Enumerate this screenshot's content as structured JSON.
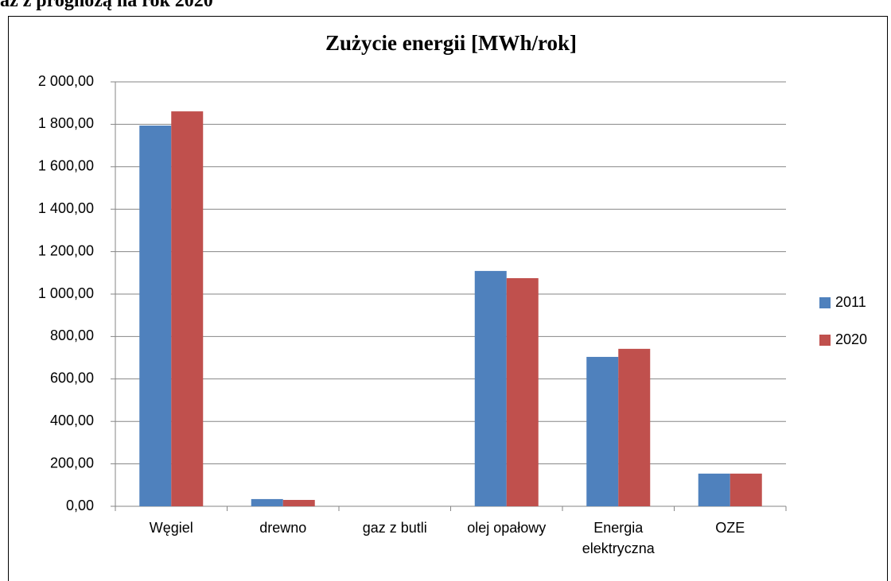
{
  "heading": "az z prognozą na rok 2020",
  "chart_data": {
    "type": "bar",
    "title": "Zużycie energii [MWh/rok]",
    "categories": [
      "Węgiel",
      "drewno",
      "gaz z butli",
      "olej opałowy",
      "Energia elektryczna",
      "OZE"
    ],
    "series": [
      {
        "name": "2011",
        "color": "#4f81bd",
        "values": [
          1794,
          34,
          0,
          1109,
          704,
          154
        ]
      },
      {
        "name": "2020",
        "color": "#c0504d",
        "values": [
          1861,
          30,
          0,
          1075,
          742,
          154
        ]
      }
    ],
    "ylim": [
      0,
      2000
    ],
    "yticks": [
      {
        "value": 0,
        "label": "0,00"
      },
      {
        "value": 200,
        "label": "200,00"
      },
      {
        "value": 400,
        "label": "400,00"
      },
      {
        "value": 600,
        "label": "600,00"
      },
      {
        "value": 800,
        "label": "800,00"
      },
      {
        "value": 1000,
        "label": "1 000,00"
      },
      {
        "value": 1200,
        "label": "1 200,00"
      },
      {
        "value": 1400,
        "label": "1 400,00"
      },
      {
        "value": 1600,
        "label": "1 600,00"
      },
      {
        "value": 1800,
        "label": "1 800,00"
      },
      {
        "value": 2000,
        "label": "2 000,00"
      }
    ],
    "grid": true,
    "legend": "right"
  }
}
